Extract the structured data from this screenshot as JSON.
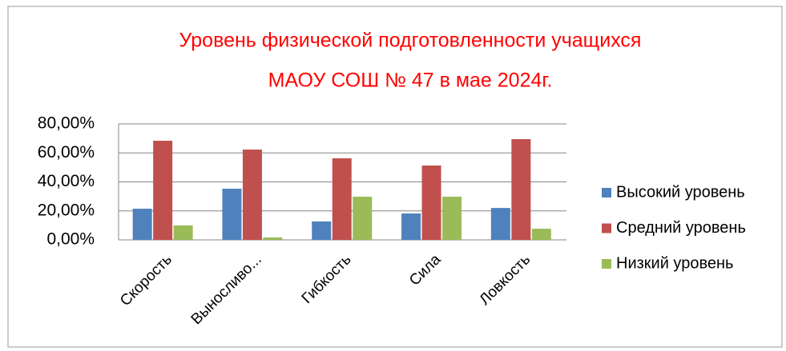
{
  "chart_data": {
    "type": "bar",
    "title": [
      "Уровень физической подготовленности учащихся",
      "МАОУ СОШ № 47 в мае 2024г."
    ],
    "categories": [
      "Скорость",
      "Выносливо...",
      "Гибкость",
      "Сила",
      "Ловкость"
    ],
    "series": [
      {
        "name": "Высокий уровень",
        "color": "#4f81bd",
        "values": [
          21.5,
          35.3,
          12.7,
          18.2,
          22
        ]
      },
      {
        "name": "Средний уровень",
        "color": "#c0504d",
        "values": [
          68.4,
          62.3,
          56.3,
          51.3,
          69.5
        ]
      },
      {
        "name": "Низкий уровень",
        "color": "#9bbb59",
        "values": [
          10,
          1.7,
          29.8,
          29.8,
          7.7
        ]
      }
    ],
    "ylim": [
      0,
      80
    ],
    "yticks": [
      {
        "value": 0,
        "label": "0,00%"
      },
      {
        "value": 20,
        "label": "20,00%"
      },
      {
        "value": 40,
        "label": "40,00%"
      },
      {
        "value": 60,
        "label": "60,00%"
      },
      {
        "value": 80,
        "label": "80,00%"
      }
    ],
    "grid": true,
    "legend": "right"
  }
}
